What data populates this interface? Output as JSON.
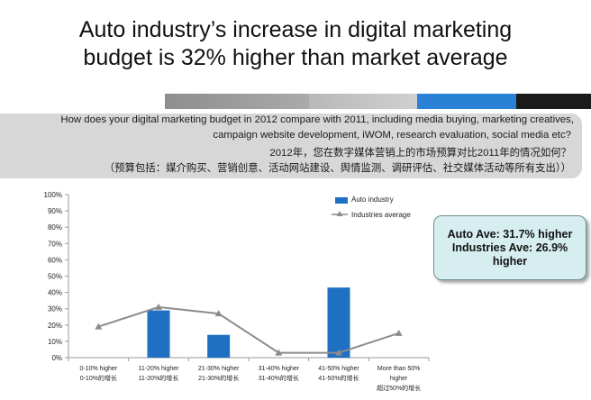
{
  "title": {
    "line1": "Auto industry’s increase in digital marketing",
    "line2": "budget is 32% higher than market average"
  },
  "colors": {
    "decoration": [
      "#9a9a9a",
      "#b3b3b3",
      "#c9c9c9",
      "#2b81d6",
      "#1a1a1a"
    ],
    "bar": "#1f6fc2",
    "line": "#8c8c8c",
    "callout_bg": "#d6eef0"
  },
  "question": {
    "line1": "How does your digital marketing budget in 2012 compare with 2011, including media buying, marketing creatives,",
    "line2": "campaign website development, iWOM, research evaluation, social media etc?",
    "line3": "2012年，您在数字媒体营销上的市场预算对比2011年的情况如何？",
    "line4": "（预算包括：媒介购买、营销创意、活动网站建设、舆情监测、调研评估、社交媒体活动等所有支出））"
  },
  "callout": {
    "line1": "Auto Ave: 31.7% higher",
    "line2": "Industries Ave: 26.9%",
    "line3": "higher"
  },
  "chart_data": {
    "type": "bar",
    "categories": [
      [
        "0-10% higher",
        "0-10%的增长"
      ],
      [
        "11-20% higher",
        "11-20%的增长"
      ],
      [
        "21-30% higher",
        "21-30%的增长"
      ],
      [
        "31-40% higher",
        "31-40%的增长"
      ],
      [
        "41-50% higher",
        "41-50%的增长"
      ],
      [
        "More than 50%",
        "higher",
        "超过50%的增长"
      ]
    ],
    "series": [
      {
        "name": "Auto industry",
        "kind": "bar",
        "values": [
          0,
          29,
          14,
          0,
          43,
          0
        ]
      },
      {
        "name": "Industries  average",
        "kind": "line",
        "values": [
          19,
          31,
          27,
          3,
          3,
          15
        ]
      }
    ],
    "ylim": [
      0,
      100
    ],
    "yticks": [
      "0%",
      "10%",
      "20%",
      "30%",
      "40%",
      "50%",
      "60%",
      "70%",
      "80%",
      "90%",
      "100%"
    ],
    "title": "",
    "xlabel": "",
    "ylabel": ""
  }
}
